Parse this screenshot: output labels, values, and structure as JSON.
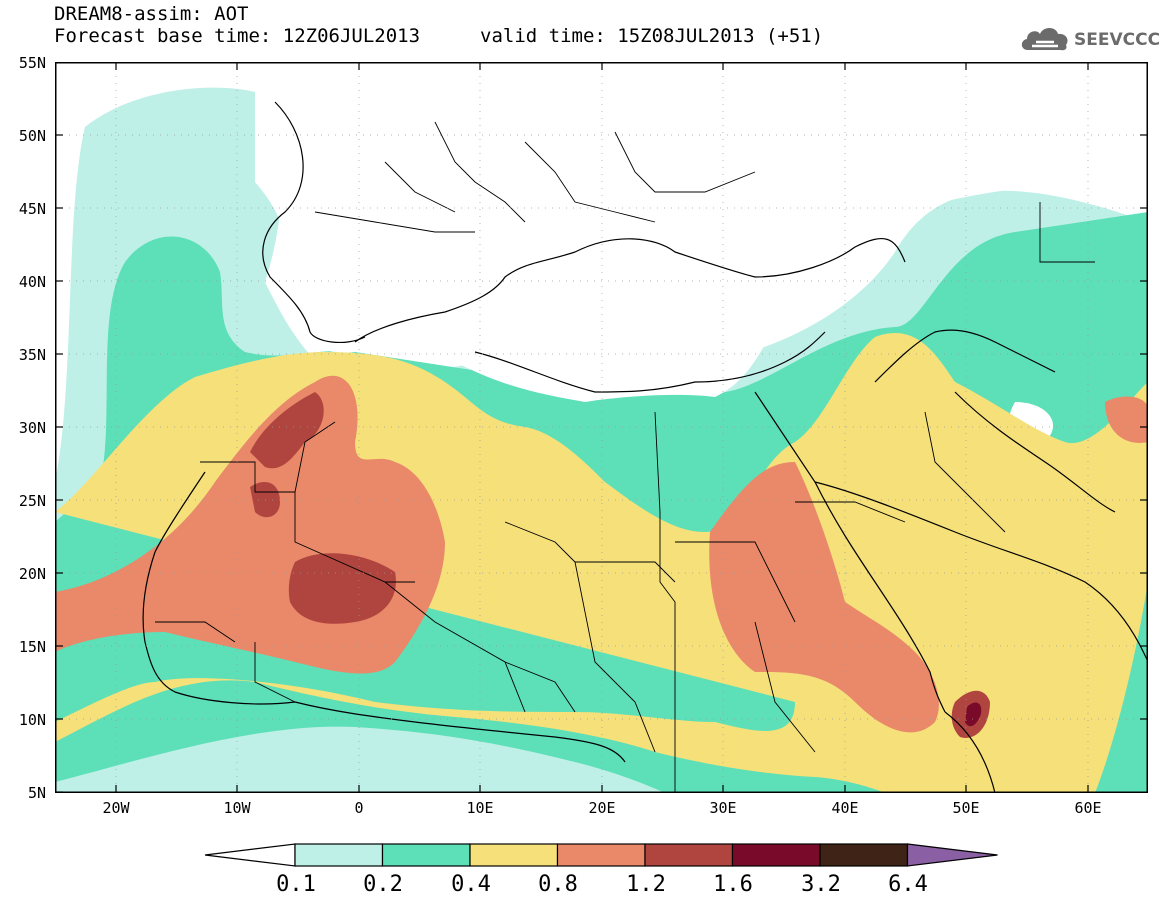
{
  "header": {
    "title_line1": "DREAM8-assim: AOT",
    "title_line2": "Forecast base time: 12Z06JUL2013",
    "valid_time": "valid time: 15Z08JUL2013 (+51)",
    "logo_text": "SEEVCCC"
  },
  "map": {
    "region": "North Africa, Europe and Middle East",
    "latitude_labels": [
      "55N",
      "50N",
      "45N",
      "40N",
      "35N",
      "30N",
      "25N",
      "20N",
      "15N",
      "10N",
      "5N"
    ],
    "longitude_labels": [
      "20W",
      "10W",
      "0",
      "10E",
      "20E",
      "30E",
      "40E",
      "50E",
      "60E"
    ],
    "lon_range": [
      -25,
      65
    ],
    "lat_range": [
      5,
      55
    ],
    "grid": "dotted"
  },
  "colorbar": {
    "labels": [
      "0.1",
      "0.2",
      "0.4",
      "0.8",
      "1.2",
      "1.6",
      "3.2",
      "6.4"
    ],
    "colors": [
      "#ffffff",
      "#bff0e8",
      "#5ddfb8",
      "#f5e07a",
      "#e9896a",
      "#b0453f",
      "#7a0a2a",
      "#3e2316",
      "#8a5fa3"
    ]
  }
}
